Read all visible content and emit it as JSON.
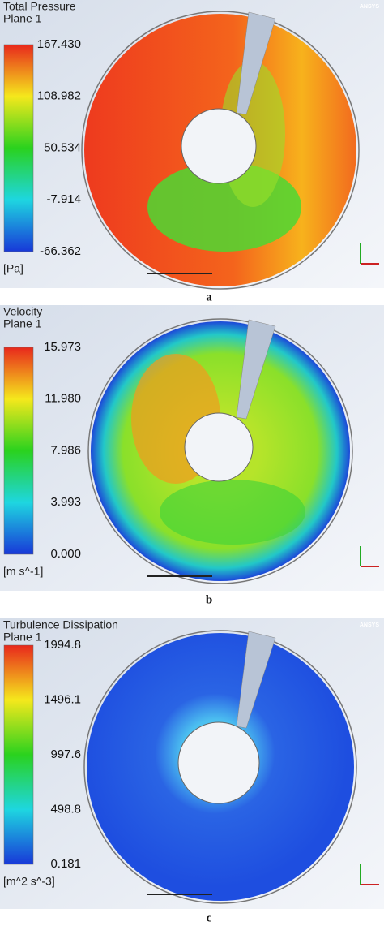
{
  "logo": "ANSYS",
  "panels": [
    {
      "title": "Total Pressure",
      "subtitle": "Plane 1",
      "legend_labels": [
        "167.430",
        "108.982",
        "50.534",
        "-7.914",
        "-66.362"
      ],
      "unit": "[Pa]",
      "caption": "a"
    },
    {
      "title": "Velocity",
      "subtitle": "Plane 1",
      "legend_labels": [
        "15.973",
        "11.980",
        "7.986",
        "3.993",
        "0.000"
      ],
      "unit": "[m s^-1]",
      "caption": "b"
    },
    {
      "title": "Turbulence Dissipation",
      "subtitle": "Plane 1",
      "legend_labels": [
        "1994.8",
        "1496.1",
        "997.6",
        "498.8",
        "0.181"
      ],
      "unit": "[m^2 s^-3]",
      "caption": "c"
    }
  ]
}
